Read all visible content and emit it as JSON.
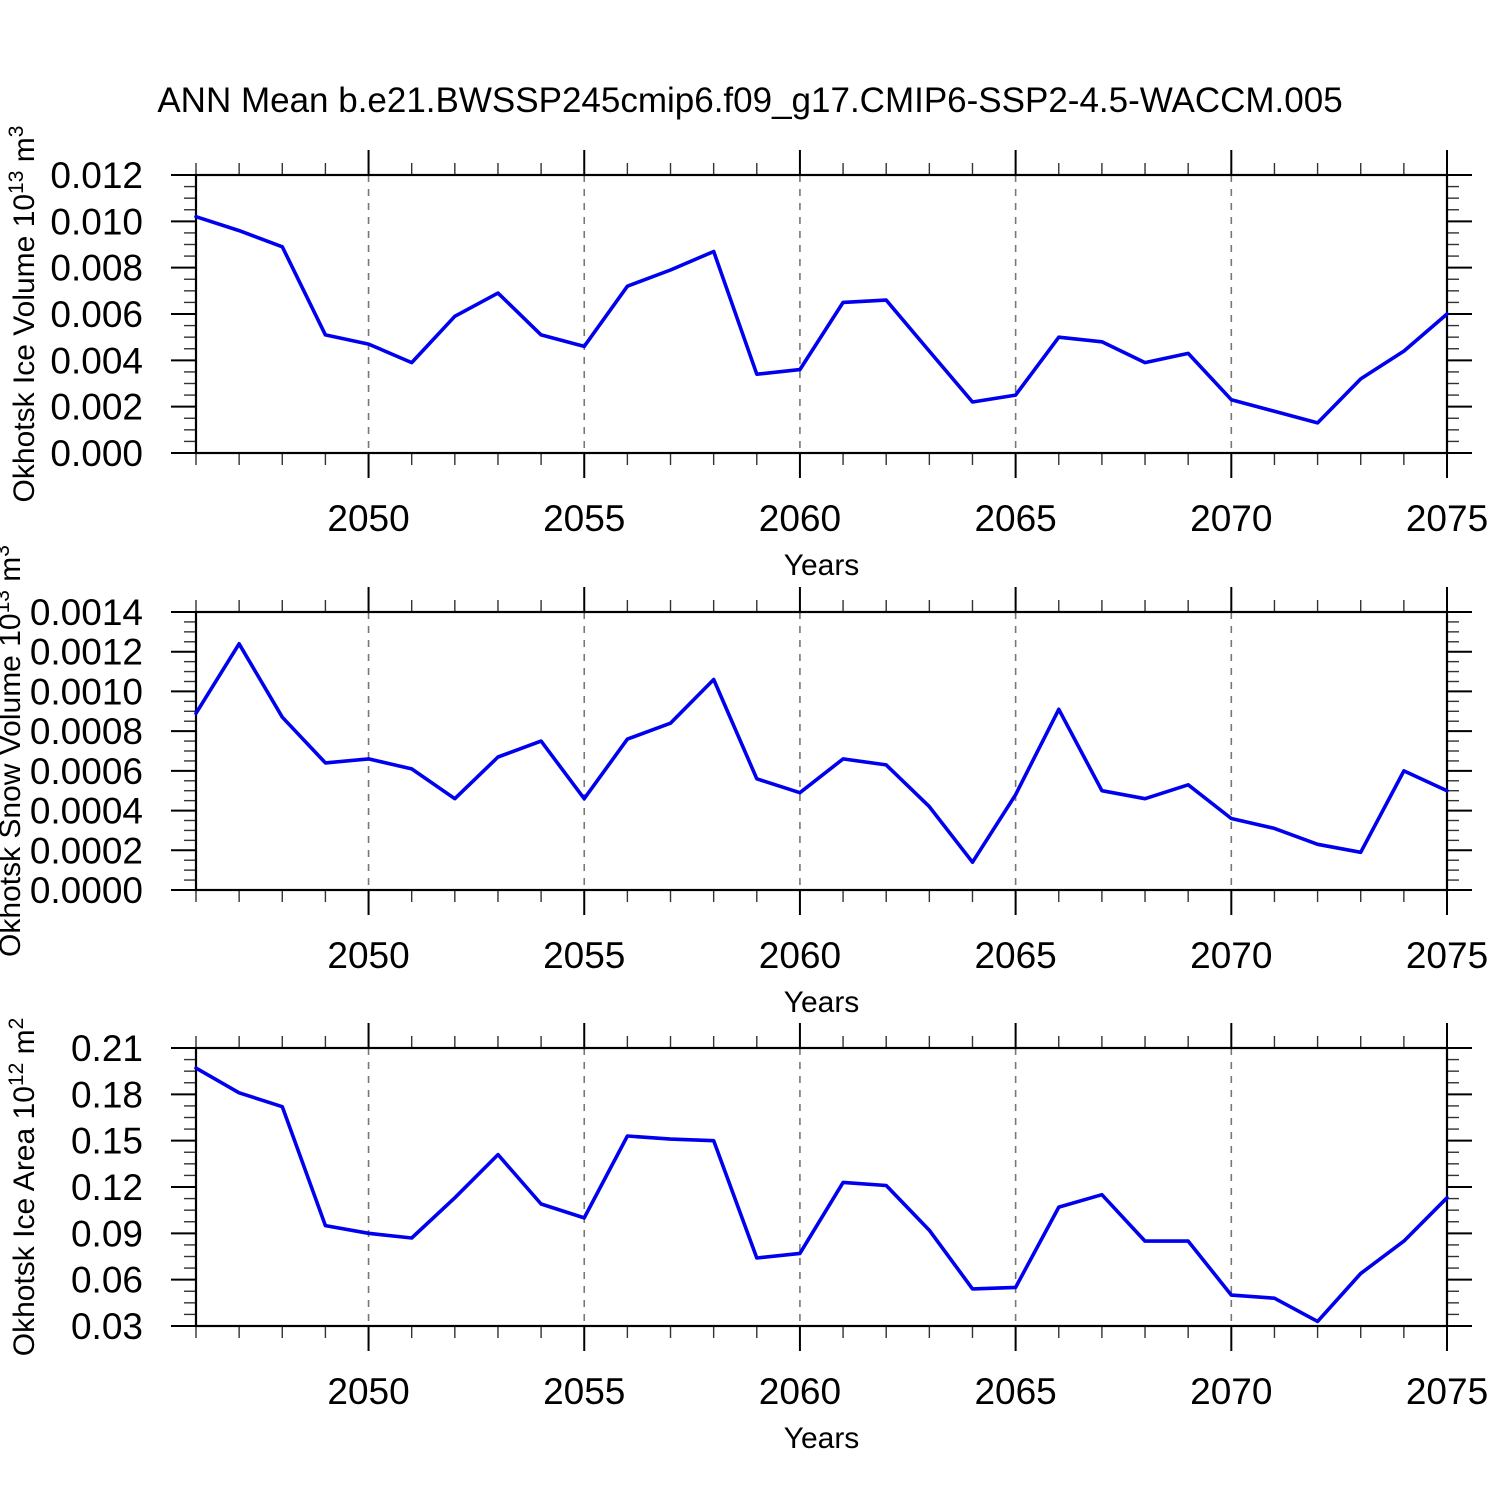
{
  "title": "ANN Mean b.e21.BWSSP245cmip6.f09_g17.CMIP6-SSP2-4.5-WACCM.005",
  "colors": {
    "line": "#0000ee",
    "grid": "#777777",
    "axis": "#000000",
    "minor_tick": "#333333",
    "text": "#000000",
    "background": "#ffffff"
  },
  "chart_data": {
    "type": "line",
    "title": "ANN Mean b.e21.BWSSP245cmip6.f09_g17.CMIP6-SSP2-4.5-WACCM.005",
    "x_label": "Years",
    "xlim": [
      2046,
      2075
    ],
    "grid": "vertical-dashed-at-major-xticks",
    "legend": "none",
    "x_ticks": {
      "major_values": [
        2050,
        2055,
        2060,
        2065,
        2070,
        2075
      ],
      "major_labels": [
        "2050",
        "2055",
        "2060",
        "2065",
        "2070",
        "2075"
      ],
      "minor_interval": 1
    },
    "years": [
      2046,
      2047,
      2048,
      2049,
      2050,
      2051,
      2052,
      2053,
      2054,
      2055,
      2056,
      2057,
      2058,
      2059,
      2060,
      2061,
      2062,
      2063,
      2064,
      2065,
      2066,
      2067,
      2068,
      2069,
      2070,
      2071,
      2072,
      2073,
      2074,
      2075
    ],
    "panels": [
      {
        "name": "okhotsk-ice-volume",
        "ylabel_plain": "Okhotsk Ice Volume 10^13 m^3",
        "ylabel_parts": [
          {
            "t": "Okhotsk Ice Volume 10"
          },
          {
            "t": "13",
            "sup": true
          },
          {
            "t": " m"
          },
          {
            "t": "3",
            "sup": true
          }
        ],
        "xlabel": "Years",
        "ylim": [
          0,
          0.012
        ],
        "ytick_values": [
          0,
          0.002,
          0.004,
          0.006,
          0.008,
          0.01,
          0.012
        ],
        "ytick_labels": [
          "0.000",
          "0.002",
          "0.004",
          "0.006",
          "0.008",
          "0.010",
          "0.012"
        ],
        "yminor_interval": 0.0005,
        "values": [
          0.0102,
          0.0096,
          0.0089,
          0.0051,
          0.0047,
          0.0039,
          0.0059,
          0.0069,
          0.0051,
          0.0046,
          0.0072,
          0.0079,
          0.0087,
          0.0034,
          0.0036,
          0.0065,
          0.0066,
          0.0044,
          0.0022,
          0.0025,
          0.005,
          0.0048,
          0.0039,
          0.0043,
          0.0023,
          0.0018,
          0.0013,
          0.0032,
          0.0044,
          0.006
        ]
      },
      {
        "name": "okhotsk-snow-volume",
        "ylabel_plain": "Okhotsk Snow Volume 10^13 m^3",
        "ylabel_parts": [
          {
            "t": "Okhotsk Snow Volume 10"
          },
          {
            "t": "13",
            "sup": true
          },
          {
            "t": " m"
          },
          {
            "t": "3",
            "sup": true
          }
        ],
        "xlabel": "Years",
        "ylim": [
          0,
          0.0014
        ],
        "ytick_values": [
          0,
          0.0002,
          0.0004,
          0.0006,
          0.0008,
          0.001,
          0.0012,
          0.0014
        ],
        "ytick_labels": [
          "0.0000",
          "0.0002",
          "0.0004",
          "0.0006",
          "0.0008",
          "0.0010",
          "0.0012",
          "0.0014"
        ],
        "yminor_interval": 5e-05,
        "values": [
          0.00089,
          0.00124,
          0.00087,
          0.00064,
          0.00066,
          0.00061,
          0.00046,
          0.00067,
          0.00075,
          0.00046,
          0.00076,
          0.00084,
          0.00106,
          0.00056,
          0.00049,
          0.00066,
          0.00063,
          0.00042,
          0.00014,
          0.00048,
          0.00091,
          0.0005,
          0.00046,
          0.00053,
          0.00036,
          0.00031,
          0.00023,
          0.00019,
          0.0006,
          0.0005
        ]
      },
      {
        "name": "okhotsk-ice-area",
        "ylabel_plain": "Okhotsk Ice Area 10^12 m^2",
        "ylabel_parts": [
          {
            "t": "Okhotsk Ice Area 10"
          },
          {
            "t": "12",
            "sup": true
          },
          {
            "t": " m"
          },
          {
            "t": "2",
            "sup": true
          }
        ],
        "xlabel": "Years",
        "ylim": [
          0.03,
          0.21
        ],
        "ytick_values": [
          0.03,
          0.06,
          0.09,
          0.12,
          0.15,
          0.18,
          0.21
        ],
        "ytick_labels": [
          "0.03",
          "0.06",
          "0.09",
          "0.12",
          "0.15",
          "0.18",
          "0.21"
        ],
        "yminor_interval": 0.0075,
        "values": [
          0.197,
          0.181,
          0.172,
          0.095,
          0.09,
          0.087,
          0.113,
          0.141,
          0.109,
          0.1,
          0.153,
          0.151,
          0.15,
          0.074,
          0.077,
          0.123,
          0.121,
          0.092,
          0.054,
          0.055,
          0.107,
          0.115,
          0.085,
          0.085,
          0.05,
          0.048,
          0.033,
          0.064,
          0.085,
          0.113
        ]
      }
    ]
  }
}
